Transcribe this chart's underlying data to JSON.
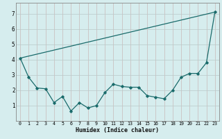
{
  "xlabel": "Humidex (Indice chaleur)",
  "bg_color": "#d6edee",
  "grid_color_v": "#c8b8b8",
  "grid_color_h": "#b8c8c8",
  "line_color": "#1a6b6b",
  "xlim": [
    -0.5,
    23.5
  ],
  "ylim": [
    0,
    7.7
  ],
  "xticks": [
    0,
    1,
    2,
    3,
    4,
    5,
    6,
    7,
    8,
    9,
    10,
    11,
    12,
    13,
    14,
    15,
    16,
    17,
    18,
    19,
    20,
    21,
    22,
    23
  ],
  "yticks": [
    1,
    2,
    3,
    4,
    5,
    6,
    7
  ],
  "straight_line": {
    "x": [
      0,
      23
    ],
    "y": [
      4.1,
      7.1
    ]
  },
  "jagged_line": {
    "x": [
      0,
      1,
      2,
      3,
      4,
      5,
      6,
      7,
      8,
      9,
      10,
      11,
      12,
      13,
      14,
      15,
      16,
      17,
      18,
      19,
      20,
      21,
      22,
      23
    ],
    "y": [
      4.1,
      2.85,
      2.15,
      2.1,
      1.2,
      1.6,
      0.65,
      1.2,
      0.85,
      1.0,
      1.85,
      2.4,
      2.25,
      2.2,
      2.2,
      1.65,
      1.55,
      1.45,
      2.0,
      2.85,
      3.1,
      3.1,
      3.8,
      7.1
    ]
  }
}
